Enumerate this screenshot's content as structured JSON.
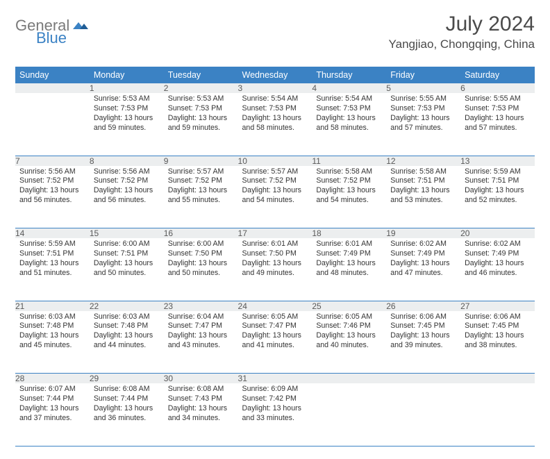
{
  "logo": {
    "part1": "General",
    "part2": "Blue"
  },
  "title": "July 2024",
  "location": "Yangjiao, Chongqing, China",
  "colors": {
    "header_bg": "#3b82c4",
    "daynum_bg": "#eceeef",
    "row_border": "#3b82c4",
    "logo_gray": "#7a7a7a",
    "logo_blue": "#3b82c4",
    "text": "#333333"
  },
  "dayHeaders": [
    "Sunday",
    "Monday",
    "Tuesday",
    "Wednesday",
    "Thursday",
    "Friday",
    "Saturday"
  ],
  "weeks": [
    [
      {
        "num": "",
        "sunrise": "",
        "sunset": "",
        "daylight": ""
      },
      {
        "num": "1",
        "sunrise": "5:53 AM",
        "sunset": "7:53 PM",
        "daylight": "13 hours and 59 minutes."
      },
      {
        "num": "2",
        "sunrise": "5:53 AM",
        "sunset": "7:53 PM",
        "daylight": "13 hours and 59 minutes."
      },
      {
        "num": "3",
        "sunrise": "5:54 AM",
        "sunset": "7:53 PM",
        "daylight": "13 hours and 58 minutes."
      },
      {
        "num": "4",
        "sunrise": "5:54 AM",
        "sunset": "7:53 PM",
        "daylight": "13 hours and 58 minutes."
      },
      {
        "num": "5",
        "sunrise": "5:55 AM",
        "sunset": "7:53 PM",
        "daylight": "13 hours and 57 minutes."
      },
      {
        "num": "6",
        "sunrise": "5:55 AM",
        "sunset": "7:53 PM",
        "daylight": "13 hours and 57 minutes."
      }
    ],
    [
      {
        "num": "7",
        "sunrise": "5:56 AM",
        "sunset": "7:52 PM",
        "daylight": "13 hours and 56 minutes."
      },
      {
        "num": "8",
        "sunrise": "5:56 AM",
        "sunset": "7:52 PM",
        "daylight": "13 hours and 56 minutes."
      },
      {
        "num": "9",
        "sunrise": "5:57 AM",
        "sunset": "7:52 PM",
        "daylight": "13 hours and 55 minutes."
      },
      {
        "num": "10",
        "sunrise": "5:57 AM",
        "sunset": "7:52 PM",
        "daylight": "13 hours and 54 minutes."
      },
      {
        "num": "11",
        "sunrise": "5:58 AM",
        "sunset": "7:52 PM",
        "daylight": "13 hours and 54 minutes."
      },
      {
        "num": "12",
        "sunrise": "5:58 AM",
        "sunset": "7:51 PM",
        "daylight": "13 hours and 53 minutes."
      },
      {
        "num": "13",
        "sunrise": "5:59 AM",
        "sunset": "7:51 PM",
        "daylight": "13 hours and 52 minutes."
      }
    ],
    [
      {
        "num": "14",
        "sunrise": "5:59 AM",
        "sunset": "7:51 PM",
        "daylight": "13 hours and 51 minutes."
      },
      {
        "num": "15",
        "sunrise": "6:00 AM",
        "sunset": "7:51 PM",
        "daylight": "13 hours and 50 minutes."
      },
      {
        "num": "16",
        "sunrise": "6:00 AM",
        "sunset": "7:50 PM",
        "daylight": "13 hours and 50 minutes."
      },
      {
        "num": "17",
        "sunrise": "6:01 AM",
        "sunset": "7:50 PM",
        "daylight": "13 hours and 49 minutes."
      },
      {
        "num": "18",
        "sunrise": "6:01 AM",
        "sunset": "7:49 PM",
        "daylight": "13 hours and 48 minutes."
      },
      {
        "num": "19",
        "sunrise": "6:02 AM",
        "sunset": "7:49 PM",
        "daylight": "13 hours and 47 minutes."
      },
      {
        "num": "20",
        "sunrise": "6:02 AM",
        "sunset": "7:49 PM",
        "daylight": "13 hours and 46 minutes."
      }
    ],
    [
      {
        "num": "21",
        "sunrise": "6:03 AM",
        "sunset": "7:48 PM",
        "daylight": "13 hours and 45 minutes."
      },
      {
        "num": "22",
        "sunrise": "6:03 AM",
        "sunset": "7:48 PM",
        "daylight": "13 hours and 44 minutes."
      },
      {
        "num": "23",
        "sunrise": "6:04 AM",
        "sunset": "7:47 PM",
        "daylight": "13 hours and 43 minutes."
      },
      {
        "num": "24",
        "sunrise": "6:05 AM",
        "sunset": "7:47 PM",
        "daylight": "13 hours and 41 minutes."
      },
      {
        "num": "25",
        "sunrise": "6:05 AM",
        "sunset": "7:46 PM",
        "daylight": "13 hours and 40 minutes."
      },
      {
        "num": "26",
        "sunrise": "6:06 AM",
        "sunset": "7:45 PM",
        "daylight": "13 hours and 39 minutes."
      },
      {
        "num": "27",
        "sunrise": "6:06 AM",
        "sunset": "7:45 PM",
        "daylight": "13 hours and 38 minutes."
      }
    ],
    [
      {
        "num": "28",
        "sunrise": "6:07 AM",
        "sunset": "7:44 PM",
        "daylight": "13 hours and 37 minutes."
      },
      {
        "num": "29",
        "sunrise": "6:08 AM",
        "sunset": "7:44 PM",
        "daylight": "13 hours and 36 minutes."
      },
      {
        "num": "30",
        "sunrise": "6:08 AM",
        "sunset": "7:43 PM",
        "daylight": "13 hours and 34 minutes."
      },
      {
        "num": "31",
        "sunrise": "6:09 AM",
        "sunset": "7:42 PM",
        "daylight": "13 hours and 33 minutes."
      },
      {
        "num": "",
        "sunrise": "",
        "sunset": "",
        "daylight": ""
      },
      {
        "num": "",
        "sunrise": "",
        "sunset": "",
        "daylight": ""
      },
      {
        "num": "",
        "sunrise": "",
        "sunset": "",
        "daylight": ""
      }
    ]
  ],
  "labels": {
    "sunrise": "Sunrise:",
    "sunset": "Sunset:",
    "daylight": "Daylight:"
  }
}
